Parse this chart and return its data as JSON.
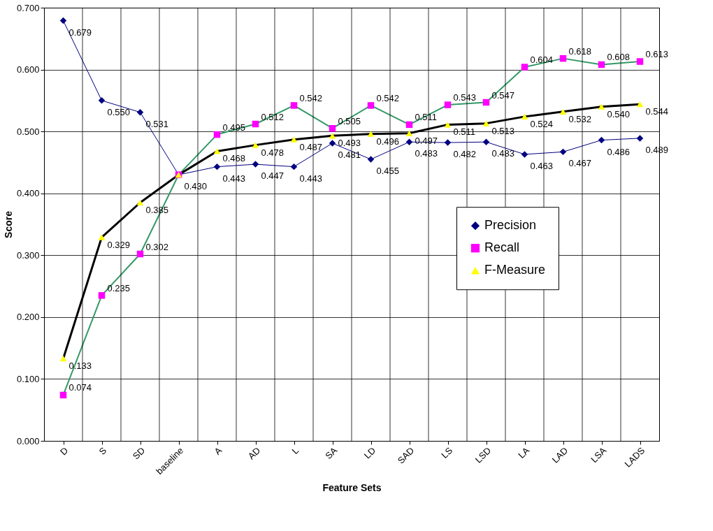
{
  "chart_data": {
    "type": "line",
    "xlabel": "Feature Sets",
    "ylabel": "Score",
    "categories": [
      "D",
      "S",
      "SD",
      "baseline",
      "A",
      "AD",
      "L",
      "SA",
      "LD",
      "SAD",
      "LS",
      "LSD",
      "LA",
      "LAD",
      "LSA",
      "LADS"
    ],
    "series": [
      {
        "name": "Precision",
        "color": "#000080",
        "marker": "diamond",
        "values": [
          0.679,
          0.55,
          0.531,
          0.43,
          0.443,
          0.447,
          0.443,
          0.481,
          0.455,
          0.483,
          0.482,
          0.483,
          0.463,
          0.467,
          0.486,
          0.489
        ],
        "value_labels": [
          "0.679",
          "0.550",
          "0.531",
          "0.430",
          "0.443",
          "0.447",
          "0.443",
          "0.481",
          "0.455",
          "0.483",
          "0.482",
          "0.483",
          "0.463",
          "0.467",
          "0.486",
          "0.489"
        ]
      },
      {
        "name": "Recall",
        "color": "#ff00ff",
        "marker": "square",
        "values": [
          0.074,
          0.235,
          0.302,
          0.43,
          0.495,
          0.512,
          0.542,
          0.505,
          0.542,
          0.511,
          0.543,
          0.547,
          0.604,
          0.618,
          0.608,
          0.613
        ],
        "value_labels": [
          "0.074",
          "0.235",
          "0.302",
          null,
          "0.495",
          "0.512",
          "0.542",
          "0.505",
          "0.542",
          "0.511",
          "0.543",
          "0.547",
          "0.604",
          "0.618",
          "0.608",
          "0.613"
        ]
      },
      {
        "name": "F-Measure",
        "color": "#ffff00",
        "marker": "triangle",
        "values": [
          0.133,
          0.329,
          0.385,
          0.43,
          0.468,
          0.478,
          0.487,
          0.493,
          0.496,
          0.497,
          0.511,
          0.513,
          0.524,
          0.532,
          0.54,
          0.544
        ],
        "value_labels": [
          "0.133",
          "0.329",
          "0.385",
          null,
          "0.468",
          "0.478",
          "0.487",
          "0.493",
          "0.496",
          "0.497",
          "0.511",
          "0.513",
          "0.524",
          "0.532",
          "0.540",
          "0.544"
        ]
      }
    ],
    "ylim": [
      0,
      0.7
    ],
    "yticks": [
      {
        "value": 0,
        "label": "0.000"
      },
      {
        "value": 0.1,
        "label": "0.100"
      },
      {
        "value": 0.2,
        "label": "0.200"
      },
      {
        "value": 0.3,
        "label": "0.300"
      },
      {
        "value": 0.4,
        "label": "0.400"
      },
      {
        "value": 0.5,
        "label": "0.500"
      },
      {
        "value": 0.6,
        "label": "0.600"
      },
      {
        "value": 0.7,
        "label": "0.700"
      }
    ],
    "grid": true,
    "legend": "right",
    "line_style": "solid"
  }
}
